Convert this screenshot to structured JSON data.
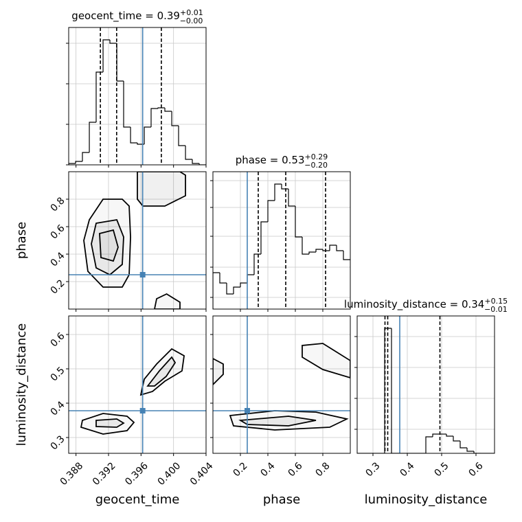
{
  "chart_data": {
    "type": "corner",
    "color": "#000000",
    "truth_color": "#4682b4",
    "grid": true,
    "parameters": [
      {
        "label": "geocent_time",
        "lim": [
          0.3871,
          0.404
        ],
        "ticks": [
          0.388,
          0.392,
          0.396,
          {
            "value": 0.4,
            "label": "0.400"
          },
          0.404
        ],
        "truth": 0.3962,
        "quantiles": [
          0.391,
          0.393,
          0.3985
        ],
        "title": {
          "text": "geocent_time = 0.39",
          "plus": "+0.01",
          "minus": "−0.00"
        },
        "hist": {
          "bins": [
            0.3871,
            0.38795,
            0.38879,
            0.38964,
            0.39048,
            0.39133,
            0.39217,
            0.39302,
            0.39386,
            0.39471,
            0.39555,
            0.3964,
            0.39724,
            0.39809,
            0.39893,
            0.39978,
            0.40062,
            0.40147,
            0.40231,
            0.40316,
            0.404
          ],
          "counts": [
            2,
            5,
            18,
            62,
            135,
            182,
            177,
            122,
            55,
            32,
            30,
            55,
            82,
            83,
            78,
            57,
            28,
            8,
            2,
            0
          ],
          "ylim": [
            0,
            200
          ],
          "yticks": [
            0,
            59,
            118,
            177
          ]
        }
      },
      {
        "label": "phase",
        "lim": [
          0.0,
          1.0
        ],
        "ticks": [
          0.2,
          0.4,
          0.6,
          0.8
        ],
        "truth": 0.25,
        "quantiles": [
          0.33,
          0.53,
          0.82
        ],
        "title": {
          "text": "phase = 0.53",
          "plus": "+0.29",
          "minus": "−0.20"
        },
        "hist": {
          "bins": [
            0,
            0.05,
            0.1,
            0.15,
            0.2,
            0.25,
            0.3,
            0.35,
            0.4,
            0.45,
            0.5,
            0.55,
            0.6,
            0.65,
            0.7,
            0.75,
            0.8,
            0.85,
            0.9,
            0.95,
            1.0
          ],
          "counts": [
            53,
            38,
            22,
            32,
            38,
            50,
            80,
            127,
            158,
            182,
            175,
            150,
            105,
            80,
            83,
            87,
            85,
            93,
            85,
            72
          ],
          "ylim": [
            0,
            200
          ],
          "yticks": [
            17,
            61,
            106,
            148,
            187
          ]
        }
      },
      {
        "label": "luminosity_distance",
        "lim": [
          0.254,
          0.654
        ],
        "ticks": [
          0.3,
          0.4,
          0.5,
          0.6
        ],
        "truth": 0.378,
        "quantiles": [
          0.335,
          0.343,
          0.495
        ],
        "title": {
          "text": "luminosity_distance = 0.34",
          "plus": "+0.15",
          "minus": "−0.01"
        },
        "hist": {
          "bins": [
            0.254,
            0.274,
            0.294,
            0.314,
            0.334,
            0.354,
            0.374,
            0.394,
            0.414,
            0.434,
            0.454,
            0.474,
            0.494,
            0.514,
            0.534,
            0.554,
            0.574,
            0.594,
            0.614,
            0.634,
            0.654
          ],
          "counts": [
            0,
            0,
            0,
            0,
            182,
            0,
            0,
            0,
            0,
            0,
            24,
            28,
            28,
            25,
            18,
            8,
            3,
            0,
            0,
            0
          ],
          "ylim": [
            0,
            200
          ],
          "yticks": [
            35,
            80,
            125,
            170
          ]
        }
      }
    ],
    "pairs": [
      {
        "x": 0,
        "y": 1,
        "contours": [
          {
            "x": [
              0.38964,
              0.39133,
              0.39369,
              0.39454,
              0.39471,
              0.39454,
              0.39369,
              0.39133,
              0.38946,
              0.38896
            ],
            "y": [
              0.65,
              0.8,
              0.8,
              0.75,
              0.525,
              0.25,
              0.16,
              0.16,
              0.275,
              0.5
            ]
          },
          {
            "x": [
              0.39048,
              0.39302,
              0.39386,
              0.39369,
              0.39217,
              0.39048,
              0.38989
            ],
            "y": [
              0.625,
              0.65,
              0.525,
              0.325,
              0.25,
              0.3,
              0.475
            ]
          },
          {
            "x": [
              0.3909,
              0.39259,
              0.39318,
              0.39259,
              0.39107
            ],
            "y": [
              0.55,
              0.575,
              0.45,
              0.35,
              0.375
            ]
          },
          {
            "x": [
              0.39555,
              0.39555,
              0.39623,
              0.39893,
              0.40147,
              0.40147,
              0.40079
            ],
            "y": [
              1.0,
              0.8,
              0.75,
              0.75,
              0.825,
              0.975,
              1.0
            ]
          },
          {
            "x": [
              0.39766,
              0.39792,
              0.39915,
              0.40079,
              0.40079
            ],
            "y": [
              0.0,
              0.075,
              0.11,
              0.05,
              0.0
            ]
          }
        ]
      },
      {
        "x": 0,
        "y": 2,
        "contours": [
          {
            "x": [
              0.38879,
              0.39133,
              0.39428,
              0.39513,
              0.39428,
              0.39133,
              0.38862
            ],
            "y": [
              0.35,
              0.37,
              0.362,
              0.344,
              0.32,
              0.31,
              0.33
            ]
          },
          {
            "x": [
              0.39048,
              0.39302,
              0.39386,
              0.39302,
              0.39048
            ],
            "y": [
              0.35,
              0.354,
              0.342,
              0.33,
              0.332
            ]
          },
          {
            "x": [
              0.39597,
              0.3964,
              0.39792,
              0.39978,
              0.4013,
              0.40104,
              0.39893,
              0.39741
            ],
            "y": [
              0.424,
              0.47,
              0.514,
              0.558,
              0.538,
              0.494,
              0.464,
              0.434
            ]
          },
          {
            "x": [
              0.39682,
              0.39826,
              0.39978,
              0.4002,
              0.3991,
              0.39766
            ],
            "y": [
              0.45,
              0.494,
              0.534,
              0.518,
              0.478,
              0.45
            ]
          }
        ]
      },
      {
        "x": 1,
        "y": 2,
        "contours": [
          {
            "x": [
              0.125,
              0.45,
              0.75,
              0.975,
              0.85,
              0.45,
              0.15
            ],
            "y": [
              0.364,
              0.378,
              0.374,
              0.354,
              0.33,
              0.322,
              0.334
            ]
          },
          {
            "x": [
              0.2,
              0.55,
              0.75,
              0.55,
              0.25
            ],
            "y": [
              0.35,
              0.362,
              0.35,
              0.334,
              0.338
            ]
          },
          {
            "x": [
              1.0,
              0.8,
              0.65,
              0.65,
              0.8,
              1.0
            ],
            "y": [
              0.524,
              0.574,
              0.568,
              0.534,
              0.498,
              0.474
            ]
          },
          {
            "x": [
              0.0,
              0.075,
              0.075,
              0.0
            ],
            "y": [
              0.53,
              0.514,
              0.484,
              0.454
            ]
          }
        ]
      }
    ]
  }
}
